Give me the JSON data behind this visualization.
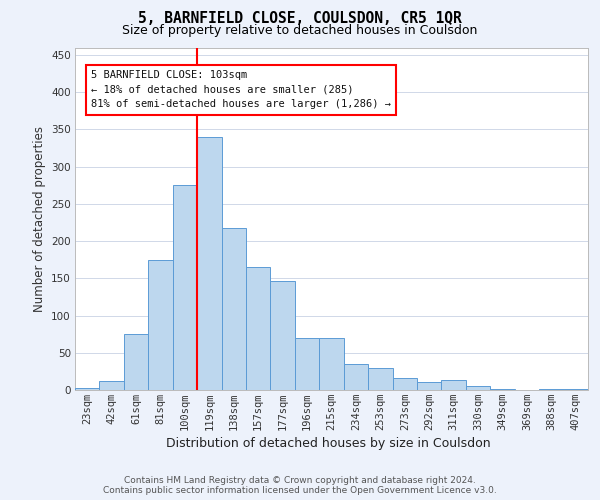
{
  "title": "5, BARNFIELD CLOSE, COULSDON, CR5 1QR",
  "subtitle": "Size of property relative to detached houses in Coulsdon",
  "xlabel": "Distribution of detached houses by size in Coulsdon",
  "ylabel": "Number of detached properties",
  "bar_labels": [
    "23sqm",
    "42sqm",
    "61sqm",
    "81sqm",
    "100sqm",
    "119sqm",
    "138sqm",
    "157sqm",
    "177sqm",
    "196sqm",
    "215sqm",
    "234sqm",
    "253sqm",
    "273sqm",
    "292sqm",
    "311sqm",
    "330sqm",
    "349sqm",
    "369sqm",
    "388sqm",
    "407sqm"
  ],
  "bar_values": [
    3,
    12,
    75,
    175,
    275,
    340,
    217,
    165,
    147,
    70,
    70,
    35,
    30,
    16,
    11,
    13,
    6,
    2,
    0,
    2,
    2
  ],
  "bar_color": "#bdd7ee",
  "bar_edge_color": "#5b9bd5",
  "ylim": [
    0,
    460
  ],
  "yticks": [
    0,
    50,
    100,
    150,
    200,
    250,
    300,
    350,
    400,
    450
  ],
  "red_line_index": 4.5,
  "annotation_line1": "5 BARNFIELD CLOSE: 103sqm",
  "annotation_line2": "← 18% of detached houses are smaller (285)",
  "annotation_line3": "81% of semi-detached houses are larger (1,286) →",
  "footer_line1": "Contains HM Land Registry data © Crown copyright and database right 2024.",
  "footer_line2": "Contains public sector information licensed under the Open Government Licence v3.0.",
  "bg_color": "#edf2fb",
  "plot_bg_color": "#ffffff",
  "grid_color": "#d0d8e8",
  "title_fontsize": 10.5,
  "subtitle_fontsize": 9.0,
  "ylabel_fontsize": 8.5,
  "xlabel_fontsize": 9.0,
  "tick_fontsize": 7.5,
  "annotation_fontsize": 7.5,
  "footer_fontsize": 6.5
}
